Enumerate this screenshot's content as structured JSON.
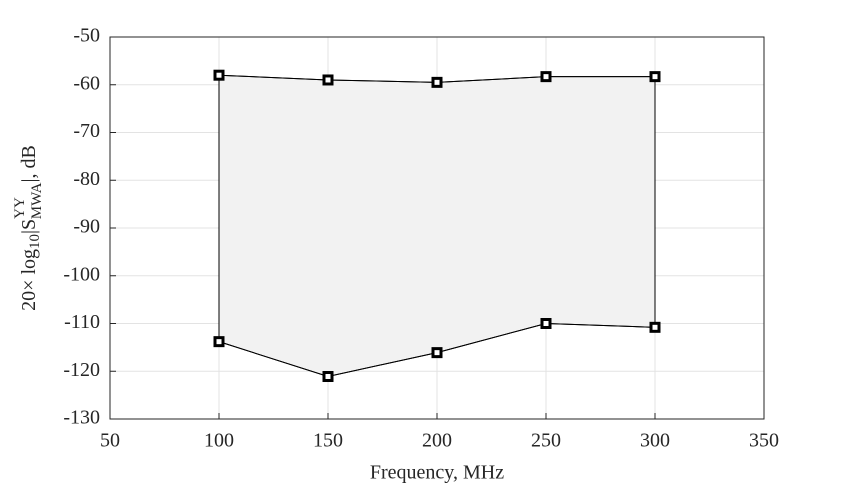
{
  "chart_data": {
    "type": "line",
    "fill_between": true,
    "fill_color": "#f2f2f2",
    "xlabel": "Frequency, MHz",
    "ylabel": {
      "prefix": "20× log",
      "sub1": "10",
      "mid": "|S",
      "sup": "YY",
      "sub2": "MWA",
      "suffix": "|, dB"
    },
    "x": [
      100,
      150,
      200,
      250,
      300
    ],
    "series": [
      {
        "color": "#000000",
        "values": [
          -58,
          -59,
          -59.5,
          -58.3,
          -58.3
        ]
      },
      {
        "color": "#000000",
        "values": [
          -113.8,
          -121.1,
          -116.1,
          -110,
          -110.8
        ]
      }
    ],
    "xlim": [
      50,
      350
    ],
    "xticks": [
      50,
      100,
      150,
      200,
      250,
      300,
      350
    ],
    "ylim": [
      -130,
      -50
    ],
    "yticks": [
      -130,
      -120,
      -110,
      -100,
      -90,
      -80,
      -70,
      -60,
      -50
    ],
    "grid": true
  }
}
